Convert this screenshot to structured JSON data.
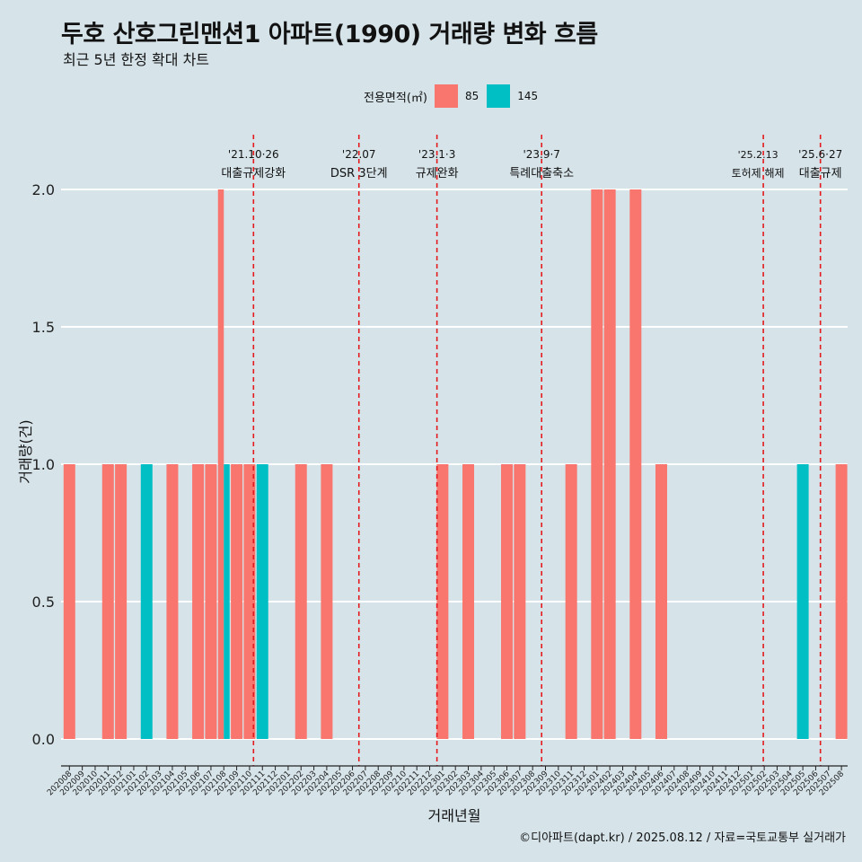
{
  "title": "두호 산호그린맨션1 아파트(1990) 거래량 변화 흐름",
  "subtitle": "최근 5년 한정 확대 차트",
  "caption": "©디아파트(dapt.kr) / 2025.08.12 / 자료=국토교통부 실거래가",
  "colors": {
    "85": "#f8766d",
    "145": "#00bfc4",
    "event": "#e41a1c",
    "background": "#d6e4ea",
    "grid": "#ffffff"
  },
  "chart_data": {
    "type": "bar",
    "xlabel": "거래년월",
    "ylabel": "거래량(건)",
    "ylim": [
      0,
      2
    ],
    "yticks": [
      "0.0",
      "0.5",
      "1.0",
      "1.5",
      "2.0"
    ],
    "legend": {
      "title": "전용면적(㎡)",
      "position": "top",
      "entries": [
        "85",
        "145"
      ]
    },
    "categories": [
      "202008",
      "202009",
      "202010",
      "202011",
      "202012",
      "202101",
      "202102",
      "202103",
      "202104",
      "202105",
      "202106",
      "202107",
      "202108",
      "202109",
      "202110",
      "202111",
      "202112",
      "202201",
      "202202",
      "202203",
      "202204",
      "202205",
      "202206",
      "202207",
      "202208",
      "202209",
      "202210",
      "202211",
      "202212",
      "202301",
      "202302",
      "202303",
      "202304",
      "202305",
      "202306",
      "202307",
      "202308",
      "202309",
      "202310",
      "202311",
      "202312",
      "202401",
      "202402",
      "202403",
      "202404",
      "202405",
      "202406",
      "202407",
      "202408",
      "202409",
      "202410",
      "202411",
      "202412",
      "202501",
      "202502",
      "202503",
      "202504",
      "202505",
      "202506",
      "202507",
      "202508"
    ],
    "bars": [
      {
        "month": "202008",
        "size": "85",
        "value": 1
      },
      {
        "month": "202011",
        "size": "85",
        "value": 1
      },
      {
        "month": "202012",
        "size": "85",
        "value": 1
      },
      {
        "month": "202102",
        "size": "145",
        "value": 1
      },
      {
        "month": "202104",
        "size": "85",
        "value": 1
      },
      {
        "month": "202106",
        "size": "85",
        "value": 1
      },
      {
        "month": "202107",
        "size": "85",
        "value": 1
      },
      {
        "month": "202108",
        "size": "85",
        "value": 2
      },
      {
        "month": "202108",
        "size": "145",
        "value": 1
      },
      {
        "month": "202109",
        "size": "85",
        "value": 1
      },
      {
        "month": "202110",
        "size": "85",
        "value": 1
      },
      {
        "month": "202111",
        "size": "145",
        "value": 1
      },
      {
        "month": "202202",
        "size": "85",
        "value": 1
      },
      {
        "month": "202204",
        "size": "85",
        "value": 1
      },
      {
        "month": "202301",
        "size": "85",
        "value": 1
      },
      {
        "month": "202303",
        "size": "85",
        "value": 1
      },
      {
        "month": "202306",
        "size": "85",
        "value": 1
      },
      {
        "month": "202307",
        "size": "85",
        "value": 1
      },
      {
        "month": "202311",
        "size": "85",
        "value": 1
      },
      {
        "month": "202401",
        "size": "85",
        "value": 2
      },
      {
        "month": "202402",
        "size": "85",
        "value": 2
      },
      {
        "month": "202404",
        "size": "85",
        "value": 2
      },
      {
        "month": "202406",
        "size": "85",
        "value": 1
      },
      {
        "month": "202505",
        "size": "145",
        "value": 1
      },
      {
        "month": "202508",
        "size": "85",
        "value": 1
      }
    ],
    "events": [
      {
        "date": "2021-10-26",
        "label1": "'21.10·26",
        "label2": "대출규제강화"
      },
      {
        "date": "2022-07-01",
        "label1": "'22.07",
        "label2": "DSR 3단계"
      },
      {
        "date": "2023-01-03",
        "label1": "'23.1·3",
        "label2": "규제완화"
      },
      {
        "date": "2023-09-07",
        "label1": "'23.9·7",
        "label2": "특례대출축소"
      },
      {
        "date": "2025-02-13",
        "label1": "'25.2.13",
        "label2": "토허제 해제"
      },
      {
        "date": "2025-06-27",
        "label1": "'25.6·27",
        "label2": "대출규제"
      }
    ]
  }
}
